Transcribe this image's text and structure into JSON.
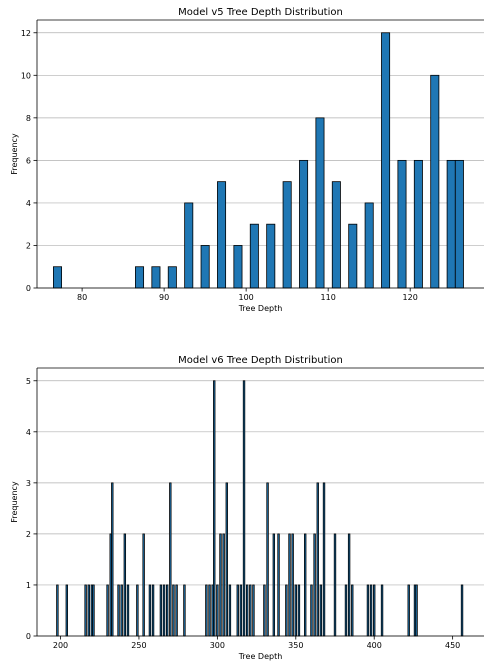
{
  "chart_data": [
    {
      "type": "bar",
      "title": "Model v5 Tree Depth Distribution",
      "xlabel": "Tree Depth",
      "ylabel": "Frequency",
      "xlim": [
        74.5,
        129
      ],
      "ylim": [
        0,
        12.6
      ],
      "xticks": [
        80,
        90,
        100,
        110,
        120
      ],
      "yticks": [
        0,
        2,
        4,
        6,
        8,
        10,
        12
      ],
      "grid": "y",
      "bar_width": 1.0,
      "x": [
        77,
        87,
        89,
        91,
        93,
        95,
        97,
        99,
        101,
        103,
        105,
        107,
        109,
        111,
        113,
        115,
        117,
        119,
        121,
        123,
        125,
        126
      ],
      "values": [
        1,
        1,
        1,
        1,
        4,
        2,
        5,
        2,
        3,
        3,
        5,
        6,
        8,
        5,
        3,
        4,
        12,
        6,
        6,
        10,
        6,
        6
      ]
    },
    {
      "type": "bar",
      "title": "Model v6 Tree Depth Distribution",
      "xlabel": "Tree Depth",
      "ylabel": "Frequency",
      "xlim": [
        185,
        470
      ],
      "ylim": [
        0,
        5.25
      ],
      "xticks": [
        200,
        250,
        300,
        350,
        400,
        450
      ],
      "yticks": [
        0,
        1,
        2,
        3,
        4,
        5
      ],
      "grid": "y",
      "bar_width": 1.0,
      "x": [
        198,
        204,
        216,
        218,
        220,
        221,
        230,
        232,
        233,
        237,
        239,
        241,
        243,
        249,
        253,
        257,
        259,
        264,
        266,
        268,
        270,
        272,
        274,
        279,
        293,
        295,
        297,
        298,
        300,
        302,
        304,
        306,
        308,
        313,
        315,
        317,
        319,
        321,
        323,
        330,
        332,
        336,
        339,
        344,
        346,
        348,
        350,
        352,
        356,
        360,
        362,
        364,
        366,
        368,
        375,
        382,
        384,
        386,
        396,
        398,
        400,
        405,
        422,
        426,
        427,
        456
      ],
      "values": [
        1,
        1,
        1,
        1,
        1,
        1,
        1,
        2,
        3,
        1,
        1,
        2,
        1,
        1,
        2,
        1,
        1,
        1,
        1,
        1,
        3,
        1,
        1,
        1,
        1,
        1,
        1,
        5,
        1,
        2,
        2,
        3,
        1,
        1,
        1,
        5,
        1,
        1,
        1,
        1,
        3,
        2,
        2,
        1,
        2,
        2,
        1,
        1,
        2,
        1,
        2,
        3,
        1,
        3,
        2,
        1,
        2,
        1,
        1,
        1,
        1,
        1,
        1,
        1,
        1,
        1
      ]
    }
  ]
}
